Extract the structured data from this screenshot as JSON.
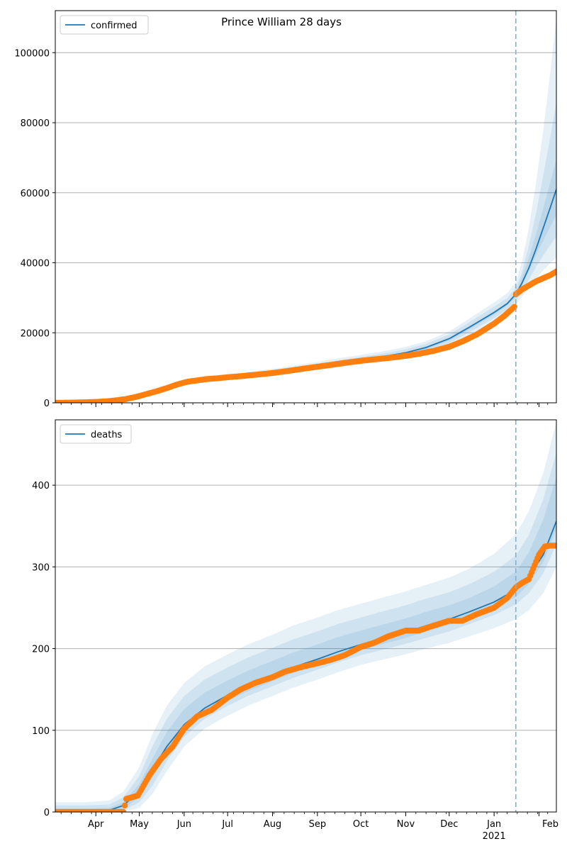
{
  "title": "Prince William 28 days",
  "colors": {
    "band": "#1f77b4",
    "model_line": "#1f77b4",
    "observed": "#ff7f0e",
    "grid": "#b0b0b0",
    "forecast_line": "#7fb2d5"
  },
  "x_tick_labels": [
    "Apr",
    "May",
    "Jun",
    "Jul",
    "Aug",
    "Sep",
    "Oct",
    "Nov",
    "Dec",
    "Jan",
    "Feb"
  ],
  "x_year_label": "2021",
  "chart_data": [
    {
      "type": "line",
      "legend": "confirmed",
      "legend_position": "upper-left",
      "grid": "horizontal",
      "xlim": [
        "2020-03-04",
        "2021-02-13"
      ],
      "ylim": [
        0,
        112000
      ],
      "yticks": [
        0,
        20000,
        40000,
        60000,
        80000,
        100000
      ],
      "ytick_labels": [
        "0",
        "20000",
        "40000",
        "60000",
        "80000",
        "100000"
      ],
      "forecast_start": "2021-01-16",
      "model_x": [
        "2020-03-04",
        "2020-03-20",
        "2020-04-01",
        "2020-04-10",
        "2020-04-20",
        "2020-05-01",
        "2020-05-10",
        "2020-05-20",
        "2020-06-01",
        "2020-06-15",
        "2020-07-01",
        "2020-07-15",
        "2020-08-01",
        "2020-08-15",
        "2020-09-01",
        "2020-09-15",
        "2020-10-01",
        "2020-10-15",
        "2020-11-01",
        "2020-11-15",
        "2020-12-01",
        "2020-12-15",
        "2021-01-01",
        "2021-01-10",
        "2021-01-16",
        "2021-01-20",
        "2021-01-25",
        "2021-01-30",
        "2021-02-04",
        "2021-02-09",
        "2021-02-13"
      ],
      "model_y": [
        0,
        50,
        200,
        400,
        700,
        1800,
        2800,
        4000,
        5600,
        6600,
        7300,
        7900,
        8700,
        9500,
        10500,
        11400,
        12300,
        13100,
        14300,
        15800,
        18300,
        21600,
        25800,
        28300,
        31000,
        34000,
        38500,
        44000,
        50000,
        56000,
        61000
      ],
      "bands": [
        {
          "lower": [
            0,
            0,
            100,
            250,
            500,
            1400,
            2300,
            3400,
            4900,
            5900,
            6600,
            7100,
            7800,
            8500,
            9400,
            10200,
            11000,
            11700,
            12700,
            14100,
            16300,
            19300,
            23200,
            25600,
            28000,
            30200,
            32800,
            35400,
            37800,
            40000,
            41500
          ],
          "upper": [
            300,
            500,
            500,
            700,
            1100,
            2300,
            3400,
            4700,
            6400,
            7400,
            8100,
            8800,
            9700,
            10600,
            11700,
            12700,
            13700,
            14600,
            16000,
            17600,
            20400,
            24100,
            28700,
            31300,
            34500,
            40000,
            50000,
            63000,
            78000,
            95000,
            110000
          ]
        },
        {
          "lower": [
            0,
            0,
            130,
            300,
            560,
            1520,
            2450,
            3550,
            5130,
            6130,
            6820,
            7360,
            8120,
            8850,
            9790,
            10630,
            11460,
            12200,
            13280,
            14700,
            17030,
            20170,
            24190,
            26710,
            29100,
            31700,
            35200,
            38800,
            42100,
            45200,
            47500
          ],
          "upper": [
            200,
            350,
            350,
            560,
            940,
            2100,
            3200,
            4470,
            6070,
            7070,
            7770,
            8440,
            9300,
            10150,
            11200,
            12150,
            13100,
            13960,
            15290,
            16830,
            19490,
            23040,
            27440,
            29940,
            32700,
            37000,
            44800,
            54300,
            65000,
            76400,
            85800
          ]
        },
        {
          "lower": [
            0,
            20,
            160,
            350,
            620,
            1640,
            2600,
            3700,
            5360,
            6360,
            7040,
            7620,
            8440,
            9200,
            10180,
            11060,
            11920,
            12700,
            13860,
            15300,
            17760,
            21040,
            25180,
            27820,
            30200,
            33200,
            37600,
            42200,
            46400,
            50400,
            53500
          ],
          "upper": [
            120,
            220,
            260,
            470,
            820,
            1940,
            3000,
            4280,
            5780,
            6780,
            7480,
            8100,
            8940,
            9730,
            10750,
            11640,
            12540,
            13350,
            14600,
            16080,
            18620,
            21990,
            26220,
            28670,
            31600,
            35600,
            41300,
            48200,
            55600,
            63200,
            69600
          ]
        }
      ],
      "observed_x": [
        "2020-03-04",
        "2020-03-15",
        "2020-03-25",
        "2020-04-01",
        "2020-04-08",
        "2020-04-15",
        "2020-04-22",
        "2020-04-29",
        "2020-05-06",
        "2020-05-13",
        "2020-05-20",
        "2020-05-27",
        "2020-06-03",
        "2020-06-10",
        "2020-06-17",
        "2020-06-24",
        "2020-07-01",
        "2020-07-10",
        "2020-07-20",
        "2020-08-01",
        "2020-08-10",
        "2020-08-20",
        "2020-09-01",
        "2020-09-10",
        "2020-09-20",
        "2020-10-01",
        "2020-10-10",
        "2020-10-20",
        "2020-11-01",
        "2020-11-10",
        "2020-11-20",
        "2020-12-01",
        "2020-12-10",
        "2020-12-20",
        "2021-01-01",
        "2021-01-08",
        "2021-01-15",
        "2021-01-16",
        "2021-01-20",
        "2021-01-25",
        "2021-01-30",
        "2021-02-04",
        "2021-02-09",
        "2021-02-13"
      ],
      "observed_y": [
        0,
        50,
        150,
        250,
        400,
        700,
        1100,
        1700,
        2500,
        3300,
        4200,
        5200,
        6000,
        6400,
        6800,
        7000,
        7300,
        7600,
        8000,
        8500,
        9000,
        9600,
        10300,
        10800,
        11400,
        12000,
        12400,
        12800,
        13400,
        14000,
        14800,
        16000,
        17500,
        19500,
        22600,
        24800,
        27400,
        31000,
        32300,
        33500,
        34700,
        35600,
        36500,
        37500
      ]
    },
    {
      "type": "line",
      "legend": "deaths",
      "legend_position": "upper-left",
      "grid": "horizontal",
      "xlim": [
        "2020-03-04",
        "2021-02-13"
      ],
      "ylim": [
        0,
        480
      ],
      "yticks": [
        0,
        100,
        200,
        300,
        400
      ],
      "ytick_labels": [
        "0",
        "100",
        "200",
        "300",
        "400"
      ],
      "forecast_start": "2021-01-16",
      "model_x": [
        "2020-03-04",
        "2020-03-25",
        "2020-04-10",
        "2020-04-20",
        "2020-05-01",
        "2020-05-10",
        "2020-05-20",
        "2020-06-01",
        "2020-06-15",
        "2020-07-01",
        "2020-07-15",
        "2020-08-01",
        "2020-08-15",
        "2020-09-01",
        "2020-09-15",
        "2020-10-01",
        "2020-10-15",
        "2020-11-01",
        "2020-11-15",
        "2020-12-01",
        "2020-12-15",
        "2021-01-01",
        "2021-01-16",
        "2021-01-25",
        "2021-02-04",
        "2021-02-13"
      ],
      "model_y": [
        0,
        0,
        2,
        8,
        25,
        52,
        80,
        107,
        127,
        143,
        155,
        167,
        177,
        187,
        196,
        205,
        212,
        220,
        228,
        236,
        245,
        257,
        272,
        288,
        315,
        356
      ],
      "bands": [
        {
          "lower": [
            0,
            0,
            0,
            0,
            5,
            22,
            50,
            80,
            102,
            118,
            130,
            142,
            152,
            162,
            171,
            180,
            186,
            193,
            200,
            207,
            215,
            225,
            236,
            247,
            268,
            300
          ],
          "upper": [
            12,
            12,
            14,
            25,
            55,
            95,
            130,
            158,
            178,
            193,
            205,
            217,
            228,
            238,
            247,
            255,
            262,
            270,
            278,
            287,
            298,
            316,
            340,
            368,
            415,
            478
          ]
        },
        {
          "lower": [
            0,
            0,
            0,
            2,
            12,
            32,
            62,
            92,
            114,
            130,
            142,
            154,
            164,
            174,
            183,
            192,
            198,
            206,
            213,
            221,
            230,
            241,
            254,
            268,
            292,
            328
          ],
          "upper": [
            8,
            8,
            9,
            18,
            44,
            80,
            114,
            142,
            162,
            177,
            189,
            201,
            211,
            221,
            230,
            238,
            245,
            253,
            261,
            269,
            279,
            294,
            314,
            339,
            383,
            440
          ]
        },
        {
          "lower": [
            0,
            0,
            1,
            4,
            18,
            42,
            71,
            100,
            120,
            136,
            148,
            160,
            170,
            180,
            189,
            198,
            205,
            213,
            221,
            229,
            238,
            249,
            263,
            279,
            306,
            346
          ],
          "upper": [
            4,
            4,
            5,
            12,
            34,
            65,
            98,
            126,
            146,
            161,
            173,
            185,
            195,
            205,
            214,
            222,
            229,
            237,
            245,
            253,
            262,
            276,
            294,
            318,
            358,
            410
          ]
        }
      ],
      "observed_x": [
        "2020-03-04",
        "2020-03-20",
        "2020-04-05",
        "2020-04-20",
        "2020-04-22",
        "2020-04-30",
        "2020-05-08",
        "2020-05-16",
        "2020-05-24",
        "2020-06-01",
        "2020-06-10",
        "2020-06-20",
        "2020-07-01",
        "2020-07-10",
        "2020-07-20",
        "2020-08-01",
        "2020-08-10",
        "2020-08-20",
        "2020-09-01",
        "2020-09-10",
        "2020-09-20",
        "2020-10-01",
        "2020-10-10",
        "2020-10-20",
        "2020-11-01",
        "2020-11-10",
        "2020-11-20",
        "2020-12-01",
        "2020-12-10",
        "2020-12-20",
        "2021-01-01",
        "2021-01-10",
        "2021-01-16",
        "2021-01-20",
        "2021-01-25",
        "2021-01-28",
        "2021-02-01",
        "2021-02-05",
        "2021-02-09",
        "2021-02-13"
      ],
      "observed_y": [
        0,
        0,
        0,
        0,
        16,
        20,
        45,
        65,
        80,
        102,
        117,
        125,
        140,
        150,
        158,
        165,
        172,
        177,
        182,
        186,
        192,
        202,
        207,
        215,
        222,
        222,
        228,
        234,
        234,
        242,
        250,
        262,
        275,
        280,
        285,
        298,
        315,
        325,
        326,
        326
      ]
    }
  ]
}
